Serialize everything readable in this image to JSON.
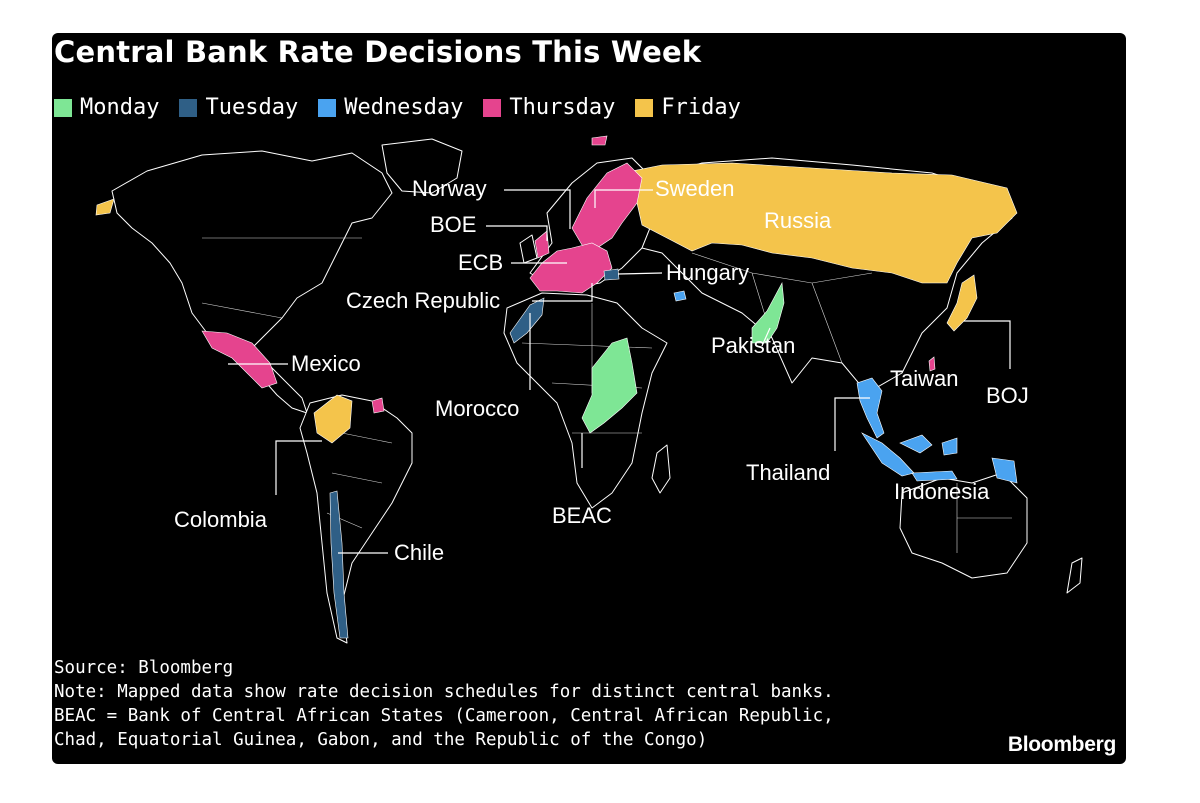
{
  "title": "Central Bank Rate Decisions This Week",
  "legend": [
    {
      "label": "Monday",
      "color": "#7ee695"
    },
    {
      "label": "Tuesday",
      "color": "#2f5f86"
    },
    {
      "label": "Wednesday",
      "color": "#4aa3f0"
    },
    {
      "label": "Thursday",
      "color": "#e5448e"
    },
    {
      "label": "Friday",
      "color": "#f4c44b"
    }
  ],
  "map": {
    "base_fill": "#000000",
    "border_color": "#ffffff",
    "regions": [
      {
        "name": "Norway",
        "day": "Thursday"
      },
      {
        "name": "Sweden",
        "day": "Thursday"
      },
      {
        "name": "BOE",
        "day": "Thursday"
      },
      {
        "name": "ECB",
        "day": "Thursday"
      },
      {
        "name": "Czech Republic",
        "day": "Thursday"
      },
      {
        "name": "Hungary",
        "day": "Tuesday"
      },
      {
        "name": "Russia",
        "day": "Friday"
      },
      {
        "name": "Mexico",
        "day": "Thursday"
      },
      {
        "name": "Morocco",
        "day": "Tuesday"
      },
      {
        "name": "Pakistan",
        "day": "Monday"
      },
      {
        "name": "Taiwan",
        "day": "Thursday"
      },
      {
        "name": "BOJ",
        "day": "Friday"
      },
      {
        "name": "Thailand",
        "day": "Wednesday"
      },
      {
        "name": "Indonesia",
        "day": "Wednesday"
      },
      {
        "name": "BEAC",
        "day": "Monday"
      },
      {
        "name": "Colombia",
        "day": "Friday"
      },
      {
        "name": "Chile",
        "day": "Tuesday"
      }
    ]
  },
  "footnotes": {
    "source": "Source: Bloomberg",
    "note": "Note: Mapped data show rate decision schedules for distinct central banks.",
    "beac_line1": "BEAC = Bank of Central African States (Cameroon, Central African Republic,",
    "beac_line2": "Chad, Equatorial Guinea, Gabon, and the Republic of the Congo)"
  },
  "logo": "Bloomberg"
}
